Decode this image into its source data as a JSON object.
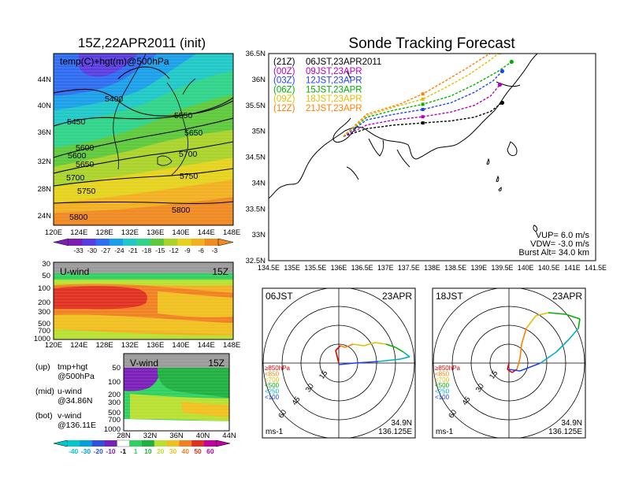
{
  "left": {
    "title": "15Z,22APR2011 (init)",
    "map_label": "temp(C)+hgt(m)@500hPa",
    "lat_ticks": [
      "44N",
      "40N",
      "36N",
      "32N",
      "28N",
      "24N"
    ],
    "lon_ticks": [
      "120E",
      "124E",
      "128E",
      "132E",
      "136E",
      "140E",
      "144E",
      "148E"
    ],
    "contours": [
      "5400",
      "5450",
      "5550",
      "5600",
      "5650",
      "5600",
      "5650",
      "5700",
      "5700",
      "5750",
      "5750",
      "5800",
      "5800"
    ],
    "temp_colorbar": [
      "-33",
      "-30",
      "-27",
      "-24",
      "-21",
      "-18",
      "-15",
      "-12",
      "-9",
      "-6",
      "-3"
    ],
    "uwind_title": "U-wind",
    "uwind_time": "15Z",
    "pressure_ticks": [
      "30",
      "50",
      "100",
      "200",
      "300",
      "500",
      "700",
      "1000"
    ],
    "vwind_title": "V-wind",
    "vwind_time": "15Z",
    "vwind_lat_ticks": [
      "28N",
      "32N",
      "36N",
      "40N",
      "44N"
    ],
    "wind_colorbar": [
      "-40",
      "-30",
      "-20",
      "-10",
      "-1",
      "1",
      "10",
      "20",
      "30",
      "40",
      "50",
      "60"
    ],
    "notes": [
      {
        "a": "(up)",
        "b": "tmp+hgt"
      },
      {
        "a": "",
        "b": "@500hPa"
      },
      {
        "a": "(mid)",
        "b": "u-wind"
      },
      {
        "a": "",
        "b": "@34.86N"
      },
      {
        "a": "(bot)",
        "b": "v-wind"
      },
      {
        "a": "",
        "b": "@136.11E"
      }
    ]
  },
  "right": {
    "title": "Sonde Tracking Forecast",
    "lat_ticks": [
      "36.5N",
      "36N",
      "35.5N",
      "35N",
      "34.5N",
      "34N",
      "33.5N",
      "33N",
      "32.5N"
    ],
    "lon_ticks": [
      "134.5E",
      "135E",
      "135.5E",
      "136E",
      "136.5E",
      "137E",
      "137.5E",
      "138E",
      "138.5E",
      "139E",
      "139.5E",
      "140E",
      "140.5E",
      "141E",
      "141.5E"
    ],
    "legend": [
      {
        "z": "(21Z)",
        "t": "06JST,23APR2011",
        "color": "#000000"
      },
      {
        "z": "(00Z)",
        "t": "09JST,23APR",
        "color": "#b000c0"
      },
      {
        "z": "(03Z)",
        "t": "12JST,23APR",
        "color": "#2040ff"
      },
      {
        "z": "(06Z)",
        "t": "15JST,23APR",
        "color": "#00b000"
      },
      {
        "z": "(09Z)",
        "t": "18JST,23APR",
        "color": "#e0c000"
      },
      {
        "z": "(12Z)",
        "t": "21JST,23APR",
        "color": "#ff8000"
      }
    ],
    "params": [
      "VUP=  6.0  m/s",
      "VDW= -3.0  m/s",
      "Burst Alt=  34.0  km"
    ],
    "hodo1": {
      "time": "06JST",
      "date": "23APR",
      "loc1": "34.9N",
      "loc2": "136.125E"
    },
    "hodo2": {
      "time": "18JST",
      "date": "23APR",
      "loc1": "34.9N",
      "loc2": "136.125E"
    },
    "hodo_ring_labels": [
      "15",
      "30",
      "45",
      "60"
    ],
    "hodo_unit": "ms-1",
    "hodo_levels": [
      {
        "label": "≥850hPa",
        "color": "#e00000"
      },
      {
        "label": "<850",
        "color": "#ff8000"
      },
      {
        "label": "<700",
        "color": "#e0c000"
      },
      {
        "label": "<500",
        "color": "#00b000"
      },
      {
        "label": "<250",
        "color": "#00b0c0"
      },
      {
        "label": "<100",
        "color": "#2040ff"
      }
    ]
  },
  "colors": {
    "temp_scale": [
      "#7a1fb0",
      "#5a3de0",
      "#2e6cf0",
      "#1a9fe8",
      "#1fc7c7",
      "#2fd48a",
      "#5ec93c",
      "#a9d22a",
      "#e5d21c",
      "#f2b021",
      "#f08a22"
    ],
    "wind_scale": [
      "#00c8c8",
      "#00a0d8",
      "#3050e0",
      "#7a20b8",
      "#ffffff",
      "#30d060",
      "#20b040",
      "#b8e030",
      "#f0c020",
      "#f08020",
      "#e03020",
      "#c000a0"
    ]
  },
  "chart_data": [
    {
      "type": "heatmap",
      "title": "15Z,22APR2011 (init)",
      "label": "temp(C)+hgt(m)@500hPa",
      "x_ticks": [
        "120E",
        "124E",
        "128E",
        "132E",
        "136E",
        "140E",
        "144E",
        "148E"
      ],
      "y_ticks": [
        "24N",
        "28N",
        "32N",
        "36N",
        "40N",
        "44N"
      ],
      "color_levels": [
        -33,
        -30,
        -27,
        -24,
        -21,
        -18,
        -15,
        -12,
        -9,
        -6,
        -3
      ],
      "contour_labels": [
        5400,
        5450,
        5550,
        5600,
        5650,
        5700,
        5750,
        5800
      ]
    },
    {
      "type": "heatmap",
      "title": "U-wind",
      "x_ticks": [
        "120E",
        "124E",
        "128E",
        "132E",
        "136E",
        "140E",
        "144E",
        "148E"
      ],
      "y_ticks_hPa": [
        30,
        50,
        100,
        200,
        300,
        500,
        700,
        1000
      ]
    },
    {
      "type": "heatmap",
      "title": "V-wind",
      "x_ticks": [
        "28N",
        "32N",
        "36N",
        "40N",
        "44N"
      ],
      "y_ticks_hPa": [
        50,
        100,
        200,
        300,
        500,
        700,
        1000
      ],
      "color_levels": [
        -40,
        -30,
        -20,
        -10,
        -1,
        1,
        10,
        20,
        30,
        40,
        50,
        60
      ]
    },
    {
      "type": "line",
      "title": "Sonde Tracking Forecast",
      "xlim": [
        134.5,
        141.5
      ],
      "ylim": [
        32.5,
        36.5
      ],
      "launch": {
        "lon": 136.1,
        "lat": 34.9
      },
      "series": [
        {
          "name": "(21Z) 06JST,23APR2011",
          "color": "#000000",
          "points": [
            [
              136.1,
              34.9
            ],
            [
              136.6,
              35.05
            ],
            [
              137.2,
              35.12
            ],
            [
              137.8,
              35.16
            ],
            [
              138.4,
              35.2
            ],
            [
              138.9,
              35.27
            ],
            [
              139.25,
              35.38
            ],
            [
              139.5,
              35.55
            ]
          ]
        },
        {
          "name": "(00Z) 09JST,23APR",
          "color": "#b000c0",
          "points": [
            [
              136.1,
              34.9
            ],
            [
              136.6,
              35.12
            ],
            [
              137.2,
              35.22
            ],
            [
              137.8,
              35.28
            ],
            [
              138.4,
              35.37
            ],
            [
              138.9,
              35.5
            ],
            [
              139.25,
              35.68
            ],
            [
              139.45,
              35.9
            ]
          ]
        },
        {
          "name": "(03Z) 12JST,23APR",
          "color": "#2040ff",
          "points": [
            [
              136.1,
              34.9
            ],
            [
              136.6,
              35.22
            ],
            [
              137.2,
              35.33
            ],
            [
              137.8,
              35.42
            ],
            [
              138.4,
              35.55
            ],
            [
              138.9,
              35.75
            ],
            [
              139.3,
              35.97
            ],
            [
              139.5,
              36.16
            ]
          ]
        },
        {
          "name": "(06Z) 15JST,23APR",
          "color": "#00b000",
          "points": [
            [
              136.1,
              34.9
            ],
            [
              136.6,
              35.27
            ],
            [
              137.2,
              35.41
            ],
            [
              137.8,
              35.52
            ],
            [
              138.4,
              35.68
            ],
            [
              138.9,
              35.9
            ],
            [
              139.4,
              36.15
            ],
            [
              139.7,
              36.34
            ]
          ]
        },
        {
          "name": "(09Z) 18JST,23APR",
          "color": "#e0c000",
          "points": [
            [
              136.1,
              34.9
            ],
            [
              136.6,
              35.3
            ],
            [
              137.2,
              35.47
            ],
            [
              137.8,
              35.62
            ],
            [
              138.3,
              35.85
            ],
            [
              138.8,
              36.1
            ],
            [
              139.2,
              36.35
            ],
            [
              139.45,
              36.52
            ]
          ]
        },
        {
          "name": "(12Z) 21JST,23APR",
          "color": "#ff8000",
          "points": [
            [
              136.1,
              34.9
            ],
            [
              136.6,
              35.33
            ],
            [
              137.3,
              35.52
            ],
            [
              137.8,
              35.72
            ],
            [
              138.3,
              35.98
            ],
            [
              138.8,
              36.25
            ],
            [
              139.2,
              36.48
            ],
            [
              139.45,
              36.6
            ]
          ]
        }
      ],
      "params": {
        "vup_mps": 6.0,
        "vdw_mps": -3.0,
        "burst_alt_km": 34.0
      }
    }
  ]
}
